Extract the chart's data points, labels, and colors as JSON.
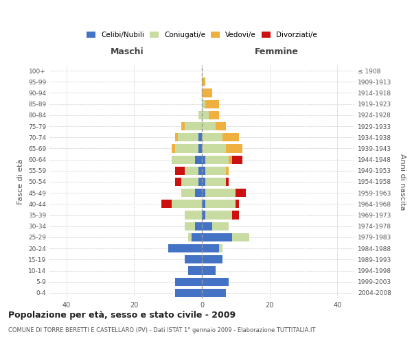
{
  "age_groups": [
    "0-4",
    "5-9",
    "10-14",
    "15-19",
    "20-24",
    "25-29",
    "30-34",
    "35-39",
    "40-44",
    "45-49",
    "50-54",
    "55-59",
    "60-64",
    "65-69",
    "70-74",
    "75-79",
    "80-84",
    "85-89",
    "90-94",
    "95-99",
    "100+"
  ],
  "birth_years": [
    "2004-2008",
    "1999-2003",
    "1994-1998",
    "1989-1993",
    "1984-1988",
    "1979-1983",
    "1974-1978",
    "1969-1973",
    "1964-1968",
    "1959-1963",
    "1954-1958",
    "1949-1953",
    "1944-1948",
    "1939-1943",
    "1934-1938",
    "1929-1933",
    "1924-1928",
    "1919-1923",
    "1914-1918",
    "1909-1913",
    "≤ 1908"
  ],
  "males": {
    "celibe": [
      8,
      8,
      4,
      5,
      10,
      3,
      2,
      0,
      0,
      2,
      1,
      1,
      2,
      1,
      1,
      0,
      0,
      0,
      0,
      0,
      0
    ],
    "coniugato": [
      0,
      0,
      0,
      0,
      0,
      1,
      3,
      5,
      9,
      4,
      5,
      4,
      7,
      7,
      6,
      5,
      1,
      0,
      0,
      0,
      0
    ],
    "vedovo": [
      0,
      0,
      0,
      0,
      0,
      0,
      0,
      0,
      0,
      0,
      0,
      0,
      0,
      1,
      1,
      1,
      0,
      0,
      0,
      0,
      0
    ],
    "divorziato": [
      0,
      0,
      0,
      0,
      0,
      0,
      0,
      0,
      3,
      0,
      2,
      3,
      0,
      0,
      0,
      0,
      0,
      0,
      0,
      0,
      0
    ]
  },
  "females": {
    "nubile": [
      7,
      8,
      4,
      6,
      5,
      9,
      3,
      1,
      1,
      1,
      1,
      1,
      1,
      0,
      0,
      0,
      0,
      0,
      0,
      0,
      0
    ],
    "coniugata": [
      0,
      0,
      0,
      0,
      1,
      5,
      5,
      8,
      9,
      9,
      6,
      6,
      7,
      7,
      6,
      4,
      2,
      1,
      0,
      0,
      0
    ],
    "vedova": [
      0,
      0,
      0,
      0,
      0,
      0,
      0,
      0,
      0,
      0,
      0,
      1,
      1,
      5,
      5,
      3,
      3,
      4,
      3,
      1,
      0
    ],
    "divorziata": [
      0,
      0,
      0,
      0,
      0,
      0,
      0,
      2,
      1,
      3,
      1,
      0,
      3,
      0,
      0,
      0,
      0,
      0,
      0,
      0,
      0
    ]
  },
  "colors": {
    "celibe": "#4472C4",
    "coniugato": "#c8dba0",
    "vedovo": "#f0b040",
    "divorziato": "#CC1111"
  },
  "title": "Popolazione per età, sesso e stato civile - 2009",
  "subtitle": "COMUNE DI TORRE BERETTI E CASTELLARO (PV) - Dati ISTAT 1° gennaio 2009 - Elaborazione TUTTITALIA.IT",
  "xlabel_left": "Maschi",
  "xlabel_right": "Femmine",
  "ylabel_left": "Fasce di età",
  "ylabel_right": "Anni di nascita",
  "xlim": 45,
  "background_color": "#ffffff",
  "grid_color": "#cccccc"
}
